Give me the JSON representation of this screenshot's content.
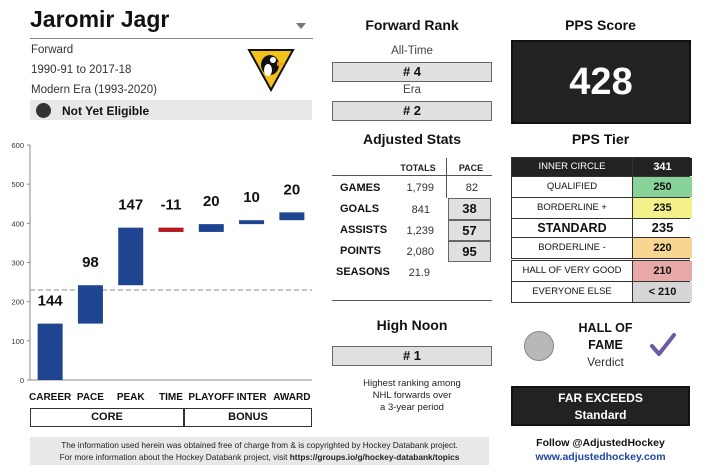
{
  "player": {
    "name": "Jaromir Jagr",
    "position": "Forward",
    "seasons": "1990-91 to 2017-18",
    "era": "Modern Era (1993-2020)",
    "hof_status": "Not Yet Eligible",
    "team_logo": "penguins-logo"
  },
  "chart_data": {
    "type": "bar",
    "subtype": "waterfall",
    "categories": [
      "CAREER",
      "PACE",
      "PEAK",
      "TIME",
      "PLAYOFF",
      "INTER",
      "AWARD"
    ],
    "values": [
      144,
      98,
      147,
      -11,
      20,
      10,
      20
    ],
    "value_labels": [
      "144",
      "98",
      "147",
      "-11",
      "20",
      "10",
      "20"
    ],
    "yticks": [
      "0",
      "100",
      "200",
      "300",
      "400",
      "500",
      "600"
    ],
    "ylim": [
      0,
      600
    ],
    "reference_line": 230,
    "colors": {
      "positive": "#1f4590",
      "negative": "#b0191e",
      "reference": "#aaaaaa"
    },
    "groups": [
      {
        "label": "CORE"
      },
      {
        "label": "BONUS"
      }
    ]
  },
  "footer": {
    "line1": "The information used herein was obtained free of charge from & is copyrighted by Hockey Databank project.",
    "line2": "For more information about the Hockey Databank project, visit ",
    "link": "https://groups.io/g/hockey-databank/topics"
  },
  "forward_rank": {
    "title": "Forward Rank",
    "all_time_label": "All-Time",
    "all_time_value": "# 4",
    "era_label": "Era",
    "era_value": "# 2"
  },
  "adjusted_stats": {
    "title": "Adjusted Stats",
    "col_totals": "TOTALS",
    "col_pace": "PACE",
    "rows": [
      {
        "label": "GAMES",
        "total": "1,799",
        "pace": "82"
      },
      {
        "label": "GOALS",
        "total": "841",
        "pace": "38"
      },
      {
        "label": "ASSISTS",
        "total": "1,239",
        "pace": "57"
      },
      {
        "label": "POINTS",
        "total": "2,080",
        "pace": "95"
      },
      {
        "label": "SEASONS",
        "total": "21.9",
        "pace": ""
      }
    ]
  },
  "high_noon": {
    "title": "High Noon",
    "value": "# 1",
    "description_1": "Highest ranking among",
    "description_2": "NHL forwards over",
    "description_3": "a 3-year period"
  },
  "pps": {
    "title": "PPS Score",
    "score": "428"
  },
  "tier": {
    "title": "PPS Tier",
    "rows": [
      {
        "name": "INNER CIRCLE",
        "value": "341",
        "name_bg": "#222222",
        "name_color": "#ffffff",
        "val_bg": "#222222",
        "val_color": "#ffffff"
      },
      {
        "name": "QUALIFIED",
        "value": "250",
        "name_bg": "#ffffff",
        "name_color": "#111111",
        "val_bg": "#88d39a",
        "val_color": "#111111"
      },
      {
        "name": "BORDERLINE +",
        "value": "235",
        "name_bg": "#ffffff",
        "name_color": "#111111",
        "val_bg": "#f4f08a",
        "val_color": "#111111"
      },
      {
        "name": "STANDARD",
        "value": "235",
        "name_bg": "#ffffff",
        "name_color": "#111111",
        "val_bg": "#ffffff",
        "val_color": "#111111"
      },
      {
        "name": "BORDERLINE -",
        "value": "220",
        "name_bg": "#ffffff",
        "name_color": "#111111",
        "val_bg": "#f6d690",
        "val_color": "#111111"
      },
      {
        "name": "HALL OF VERY GOOD",
        "value": "210",
        "name_bg": "#ffffff",
        "name_color": "#111111",
        "val_bg": "#e8a8a8",
        "val_color": "#111111"
      },
      {
        "name": "EVERYONE ELSE",
        "value": "< 210",
        "name_bg": "#ffffff",
        "name_color": "#111111",
        "val_bg": "#d6d6d6",
        "val_color": "#111111"
      }
    ]
  },
  "verdict": {
    "title_1": "HALL OF",
    "title_2": "FAME",
    "subtitle": "Verdict",
    "icon": "checkmark-icon",
    "color": "#6d5aa0"
  },
  "exceeds": {
    "line1": "FAR EXCEEDS",
    "line2": "Standard"
  },
  "social": {
    "follow": "Follow @AdjustedHockey",
    "site": "www.adjustedhockey.com"
  }
}
